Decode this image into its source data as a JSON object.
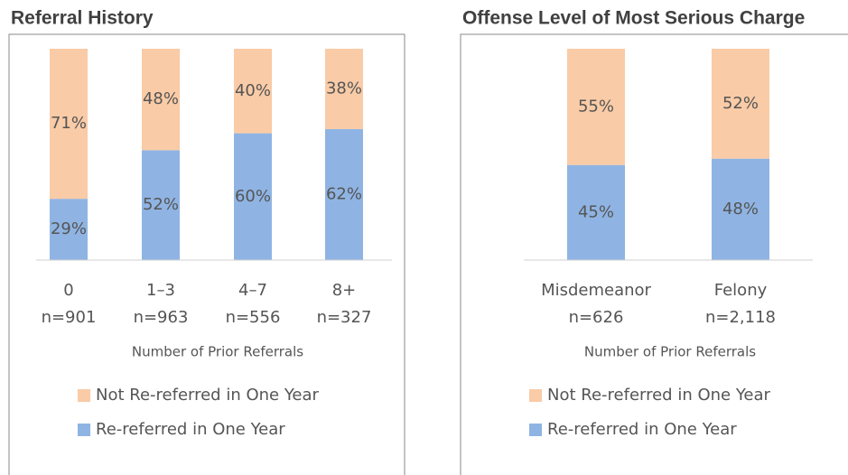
{
  "chart_data": [
    {
      "type": "bar",
      "stacked": true,
      "title": "Referral History",
      "categories": [
        "0",
        "1–3",
        "4–7",
        "8+"
      ],
      "sample_sizes": [
        "n=901",
        "n=963",
        "n=556",
        "n=327"
      ],
      "x_label": "Number of Prior Referrals",
      "ylim": [
        0,
        100
      ],
      "series": [
        {
          "name": "Re-referred in One Year",
          "color": "#8fb4e3",
          "values": [
            29,
            52,
            60,
            62
          ],
          "value_labels": [
            "29%",
            "52%",
            "60%",
            "62%"
          ]
        },
        {
          "name": "Not Re-referred in One Year",
          "color": "#f9cba6",
          "values": [
            71,
            48,
            40,
            38
          ],
          "value_labels": [
            "71%",
            "48%",
            "40%",
            "38%"
          ]
        }
      ]
    },
    {
      "type": "bar",
      "stacked": true,
      "title": "Offense Level of Most Serious Charge",
      "categories": [
        "Misdemeanor",
        "Felony"
      ],
      "sample_sizes": [
        "n=626",
        "n=2,118"
      ],
      "x_label": "Number of Prior Referrals",
      "ylim": [
        0,
        100
      ],
      "series": [
        {
          "name": "Re-referred in One Year",
          "color": "#8fb4e3",
          "values": [
            45,
            48
          ],
          "value_labels": [
            "45%",
            "48%"
          ]
        },
        {
          "name": "Not Re-referred in One Year",
          "color": "#f9cba6",
          "values": [
            55,
            52
          ],
          "value_labels": [
            "55%",
            "52%"
          ]
        }
      ]
    }
  ]
}
